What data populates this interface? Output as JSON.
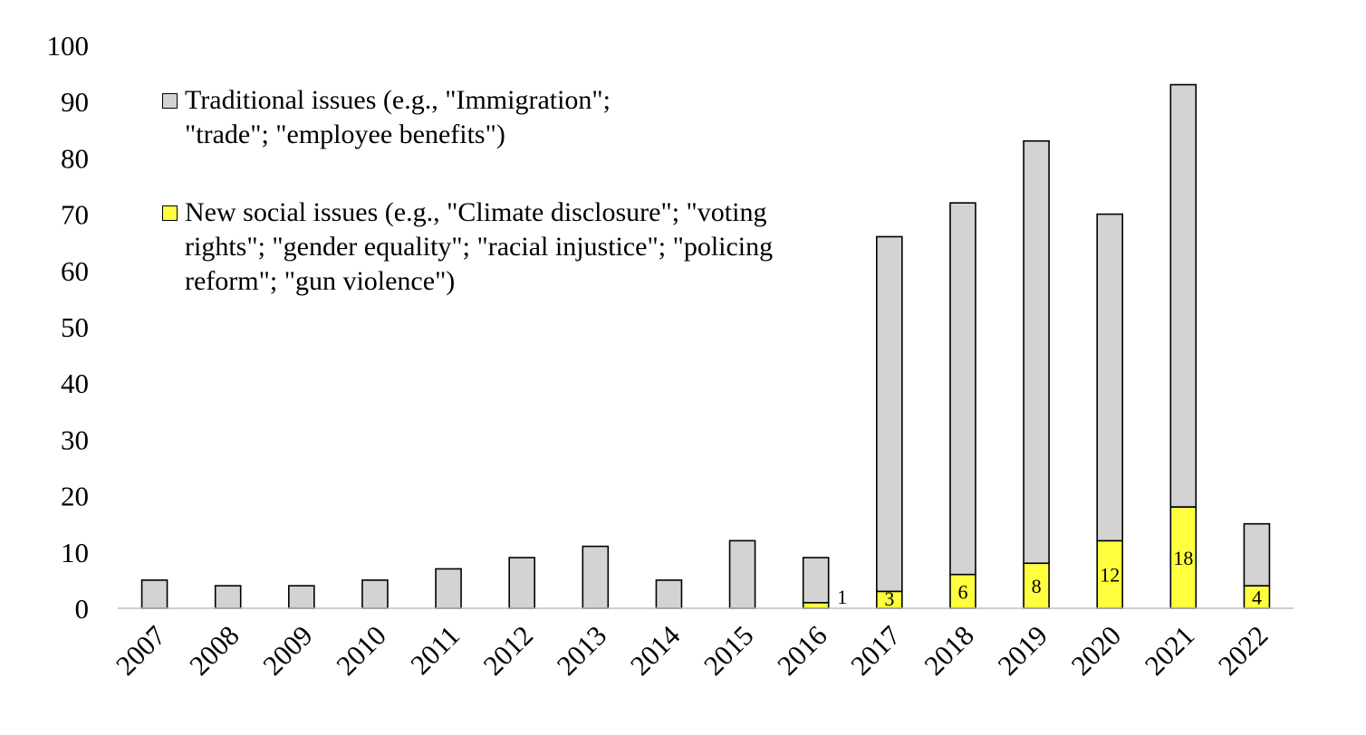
{
  "chart_data": {
    "type": "bar",
    "stacked": true,
    "categories": [
      "2007",
      "2008",
      "2009",
      "2010",
      "2011",
      "2012",
      "2013",
      "2014",
      "2015",
      "2016",
      "2017",
      "2018",
      "2019",
      "2020",
      "2021",
      "2022"
    ],
    "series": [
      {
        "name": "New social issues (e.g., \"Climate disclosure\"; \"voting rights\"; \"gender equality\"; \"racial injustice\"; \"policing reform\"; \"gun violence\")",
        "color": "#ffff40",
        "values": [
          0,
          0,
          0,
          0,
          0,
          0,
          0,
          0,
          0,
          1,
          3,
          6,
          8,
          12,
          18,
          4
        ],
        "data_labels": [
          "",
          "",
          "",
          "",
          "",
          "",
          "",
          "",
          "",
          "1",
          "3",
          "6",
          "8",
          "12",
          "18",
          "4"
        ]
      },
      {
        "name": "Traditional issues (e.g., \"Immigration\"; \"trade\"; \"employee benefits\")",
        "color": "#d3d3d3",
        "values": [
          5,
          4,
          4,
          5,
          7,
          9,
          11,
          5,
          12,
          8,
          63,
          66,
          75,
          58,
          75,
          11
        ]
      }
    ],
    "ylim": [
      0,
      100
    ],
    "yticks": [
      "0",
      "10",
      "20",
      "30",
      "40",
      "50",
      "60",
      "70",
      "80",
      "90",
      "100"
    ],
    "grid": false,
    "legend_position": "top-left",
    "title": "",
    "xlabel": "",
    "ylabel": ""
  }
}
